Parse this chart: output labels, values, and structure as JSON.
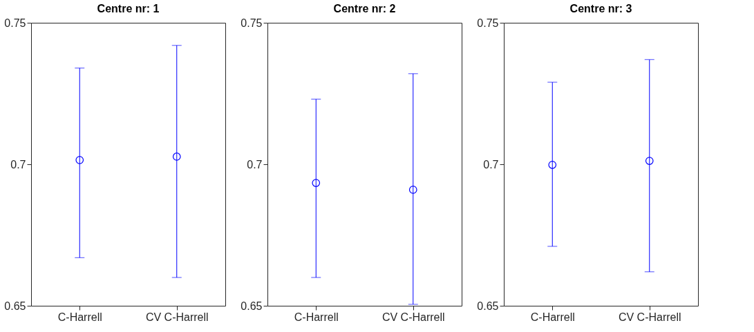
{
  "chart_data": [
    {
      "type": "scatter",
      "title": "Centre nr: 1",
      "categories": [
        "C-Harrell",
        "CV C-Harrell"
      ],
      "series": [
        {
          "color": "#0000ff",
          "values": [
            0.7015,
            0.7027
          ],
          "errors": [
            [
              0.667,
              0.734
            ],
            [
              0.66,
              0.742
            ]
          ]
        }
      ],
      "marker": "circle",
      "ylim": [
        0.65,
        0.75
      ],
      "yticks": [
        0.65,
        0.7,
        0.75
      ],
      "grid": false
    },
    {
      "type": "scatter",
      "title": "Centre nr: 2",
      "categories": [
        "C-Harrell",
        "CV C-Harrell"
      ],
      "series": [
        {
          "color": "#0000ff",
          "values": [
            0.6934,
            0.691
          ],
          "errors": [
            [
              0.66,
              0.723
            ],
            [
              0.6505,
              0.732
            ]
          ]
        }
      ],
      "marker": "circle",
      "ylim": [
        0.65,
        0.75
      ],
      "yticks": [
        0.65,
        0.7,
        0.75
      ],
      "grid": false
    },
    {
      "type": "scatter",
      "title": "Centre nr: 3",
      "categories": [
        "C-Harrell",
        "CV C-Harrell"
      ],
      "series": [
        {
          "color": "#0000ff",
          "values": [
            0.6998,
            0.7012
          ],
          "errors": [
            [
              0.671,
              0.729
            ],
            [
              0.662,
              0.737
            ]
          ]
        }
      ],
      "marker": "circle",
      "ylim": [
        0.65,
        0.75
      ],
      "yticks": [
        0.65,
        0.7,
        0.75
      ],
      "grid": false
    }
  ]
}
